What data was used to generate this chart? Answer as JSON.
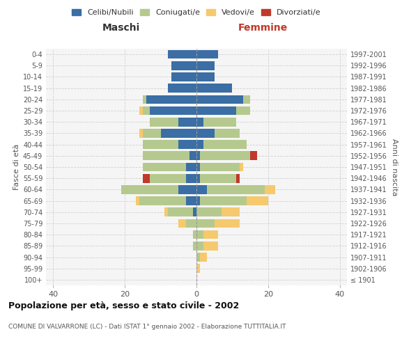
{
  "age_groups": [
    "100+",
    "95-99",
    "90-94",
    "85-89",
    "80-84",
    "75-79",
    "70-74",
    "65-69",
    "60-64",
    "55-59",
    "50-54",
    "45-49",
    "40-44",
    "35-39",
    "30-34",
    "25-29",
    "20-24",
    "15-19",
    "10-14",
    "5-9",
    "0-4"
  ],
  "birth_years": [
    "≤ 1901",
    "1902-1906",
    "1907-1911",
    "1912-1916",
    "1917-1921",
    "1922-1926",
    "1927-1931",
    "1932-1936",
    "1937-1941",
    "1942-1946",
    "1947-1951",
    "1952-1956",
    "1957-1961",
    "1962-1966",
    "1967-1971",
    "1972-1976",
    "1977-1981",
    "1982-1986",
    "1987-1991",
    "1992-1996",
    "1997-2001"
  ],
  "maschi": {
    "celibi": [
      0,
      0,
      0,
      0,
      0,
      0,
      1,
      3,
      5,
      3,
      3,
      2,
      5,
      10,
      5,
      13,
      14,
      8,
      7,
      7,
      8
    ],
    "coniugati": [
      0,
      0,
      0,
      1,
      1,
      3,
      7,
      13,
      16,
      10,
      12,
      13,
      10,
      5,
      8,
      2,
      1,
      0,
      0,
      0,
      0
    ],
    "vedovi": [
      0,
      0,
      0,
      0,
      0,
      2,
      1,
      1,
      0,
      0,
      0,
      0,
      0,
      1,
      0,
      1,
      0,
      0,
      0,
      0,
      0
    ],
    "divorziati": [
      0,
      0,
      0,
      0,
      0,
      0,
      0,
      0,
      0,
      2,
      0,
      0,
      0,
      0,
      0,
      0,
      0,
      0,
      0,
      0,
      0
    ]
  },
  "femmine": {
    "nubili": [
      0,
      0,
      0,
      0,
      0,
      0,
      0,
      1,
      3,
      1,
      1,
      1,
      2,
      5,
      2,
      11,
      13,
      10,
      5,
      5,
      6
    ],
    "coniugate": [
      0,
      0,
      1,
      2,
      2,
      5,
      7,
      13,
      16,
      10,
      11,
      14,
      12,
      7,
      9,
      4,
      2,
      0,
      0,
      0,
      0
    ],
    "vedove": [
      0,
      1,
      2,
      4,
      4,
      7,
      5,
      6,
      3,
      0,
      1,
      0,
      0,
      0,
      0,
      0,
      0,
      0,
      0,
      0,
      0
    ],
    "divorziate": [
      0,
      0,
      0,
      0,
      0,
      0,
      0,
      0,
      0,
      1,
      0,
      2,
      0,
      0,
      0,
      0,
      0,
      0,
      0,
      0,
      0
    ]
  },
  "colors": {
    "celibi": "#3a6ea5",
    "coniugati": "#b5c98e",
    "vedovi": "#f5c96e",
    "divorziati": "#c0392b"
  },
  "title": "Popolazione per età, sesso e stato civile - 2002",
  "subtitle": "COMUNE DI VALVARRONE (LC) - Dati ISTAT 1° gennaio 2002 - Elaborazione TUTTITALIA.IT",
  "xlabel_left": "Maschi",
  "xlabel_right": "Femmine",
  "ylabel": "Fasce di età",
  "ylabel_right": "Anni di nascita",
  "xlim": 42,
  "legend_labels": [
    "Celibi/Nubili",
    "Coniugati/e",
    "Vedovi/e",
    "Divorziati/e"
  ],
  "bg_color": "#f5f5f5",
  "grid_color": "#cccccc"
}
